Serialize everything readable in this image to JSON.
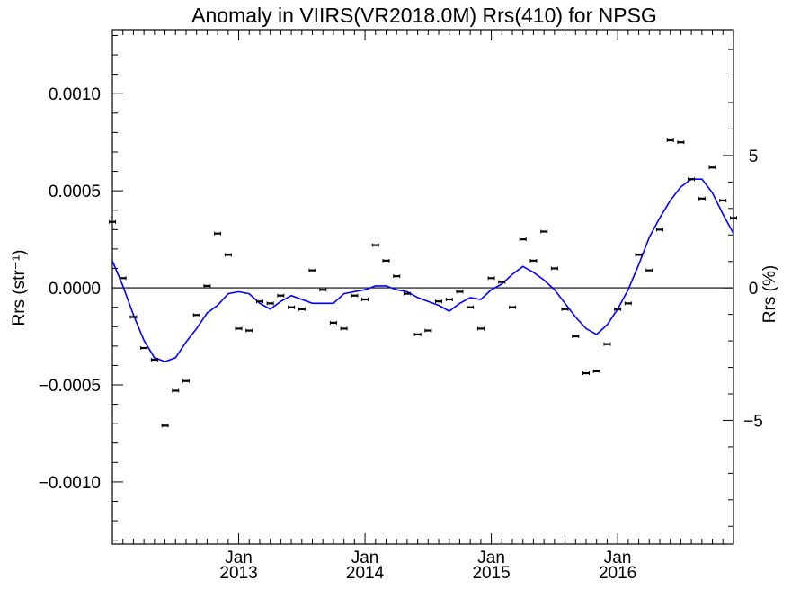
{
  "chart_data": {
    "type": "scatter",
    "title": "Anomaly in VIIRS(VR2018.0M) Rrs(410) for NPSG",
    "ylabel_left": "Rrs (str⁻¹)",
    "ylabel_right": "Rrs (%)",
    "xlim": [
      2012.0,
      2016.917
    ],
    "ylim_left": [
      -0.00132,
      0.00133
    ],
    "ylim_right": [
      -9.67,
      9.75
    ],
    "grid": false,
    "x_ticks": [
      {
        "value": 2013.0,
        "month": "Jan",
        "year": "2013"
      },
      {
        "value": 2014.0,
        "month": "Jan",
        "year": "2014"
      },
      {
        "value": 2015.0,
        "month": "Jan",
        "year": "2015"
      },
      {
        "value": 2016.0,
        "month": "Jan",
        "year": "2016"
      }
    ],
    "y_ticks_left": [
      {
        "value": 0.001,
        "label": "0.0010"
      },
      {
        "value": 0.0005,
        "label": "0.0005"
      },
      {
        "value": 0.0,
        "label": "0.0000"
      },
      {
        "value": -0.0005,
        "label": "−0.0005"
      },
      {
        "value": -0.001,
        "label": "−0.0010"
      }
    ],
    "y_ticks_right": [
      {
        "value": 5,
        "label": "5"
      },
      {
        "value": 0,
        "label": "0"
      },
      {
        "value": -5,
        "label": "−5"
      }
    ],
    "series": [
      {
        "kind": "monthly-anomaly-points",
        "color": "#000000",
        "x": [
          2012.0,
          2012.083,
          2012.167,
          2012.25,
          2012.333,
          2012.417,
          2012.5,
          2012.583,
          2012.667,
          2012.75,
          2012.833,
          2012.917,
          2013.0,
          2013.083,
          2013.167,
          2013.25,
          2013.333,
          2013.417,
          2013.5,
          2013.583,
          2013.667,
          2013.75,
          2013.833,
          2013.917,
          2014.0,
          2014.083,
          2014.167,
          2014.25,
          2014.333,
          2014.417,
          2014.5,
          2014.583,
          2014.667,
          2014.75,
          2014.833,
          2014.917,
          2015.0,
          2015.083,
          2015.167,
          2015.25,
          2015.333,
          2015.417,
          2015.5,
          2015.583,
          2015.667,
          2015.75,
          2015.833,
          2015.917,
          2016.0,
          2016.083,
          2016.167,
          2016.25,
          2016.333,
          2016.417,
          2016.5,
          2016.583,
          2016.667,
          2016.75,
          2016.833,
          2016.917
        ],
        "y": [
          0.00034,
          5e-05,
          -0.00015,
          -0.00031,
          -0.00037,
          -0.00071,
          -0.00053,
          -0.00048,
          -0.00014,
          1e-05,
          0.00028,
          0.00017,
          -0.00021,
          -0.00022,
          -7e-05,
          -8e-05,
          -4e-05,
          -0.0001,
          -0.00011,
          9e-05,
          -1e-05,
          -0.00018,
          -0.00021,
          -4e-05,
          -6e-05,
          0.00022,
          0.00014,
          6e-05,
          -3e-05,
          -0.00024,
          -0.00022,
          -7e-05,
          -6e-05,
          -2e-05,
          -0.0001,
          -0.00021,
          5e-05,
          3e-05,
          -0.0001,
          0.00025,
          0.00014,
          0.00029,
          0.0001,
          -0.00011,
          -0.00025,
          -0.00044,
          -0.00043,
          -0.00029,
          -0.00011,
          -8e-05,
          0.00017,
          9e-05,
          0.0003,
          0.00076,
          0.00075,
          0.00056,
          0.00046,
          0.00062,
          0.00045,
          0.00036
        ]
      },
      {
        "kind": "smoothed-line",
        "color": "#0000ff",
        "x": [
          2012.0,
          2012.083,
          2012.167,
          2012.25,
          2012.333,
          2012.417,
          2012.5,
          2012.583,
          2012.667,
          2012.75,
          2012.833,
          2012.917,
          2013.0,
          2013.083,
          2013.167,
          2013.25,
          2013.333,
          2013.417,
          2013.5,
          2013.583,
          2013.667,
          2013.75,
          2013.833,
          2013.917,
          2014.0,
          2014.083,
          2014.167,
          2014.25,
          2014.333,
          2014.417,
          2014.5,
          2014.583,
          2014.667,
          2014.75,
          2014.833,
          2014.917,
          2015.0,
          2015.083,
          2015.167,
          2015.25,
          2015.333,
          2015.417,
          2015.5,
          2015.583,
          2015.667,
          2015.75,
          2015.833,
          2015.917,
          2016.0,
          2016.083,
          2016.167,
          2016.25,
          2016.333,
          2016.417,
          2016.5,
          2016.583,
          2016.667,
          2016.75,
          2016.833,
          2016.917
        ],
        "y": [
          0.00014,
          1e-05,
          -0.00014,
          -0.00027,
          -0.00036,
          -0.00038,
          -0.00036,
          -0.00028,
          -0.00021,
          -0.00013,
          -9e-05,
          -3e-05,
          -2e-05,
          -3e-05,
          -8e-05,
          -0.00011,
          -7e-05,
          -4e-05,
          -6e-05,
          -8e-05,
          -8e-05,
          -8e-05,
          -3e-05,
          -2e-05,
          -1e-05,
          1e-05,
          1e-05,
          -1e-05,
          -2e-05,
          -5e-05,
          -7e-05,
          -9e-05,
          -0.00012,
          -8e-05,
          -5e-05,
          -6e-05,
          -1e-05,
          2e-05,
          7e-05,
          0.00011,
          8e-05,
          4e-05,
          -1e-05,
          -8e-05,
          -0.00015,
          -0.00021,
          -0.00024,
          -0.00019,
          -0.00011,
          -1e-05,
          0.00012,
          0.00026,
          0.00036,
          0.00045,
          0.00052,
          0.00056,
          0.00056,
          0.00049,
          0.00038,
          0.00028
        ]
      }
    ]
  }
}
